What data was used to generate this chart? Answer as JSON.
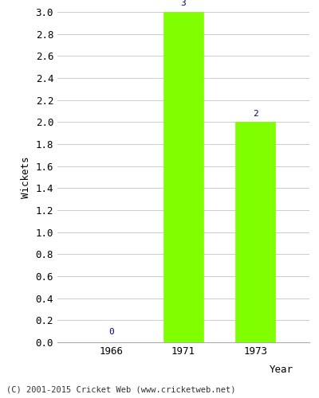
{
  "years": [
    "1966",
    "1971",
    "1973"
  ],
  "values": [
    0,
    3,
    2
  ],
  "bar_color": "#7fff00",
  "bar_edge_color": "#7fff00",
  "label_color": "#000080",
  "xlabel": "Year",
  "ylabel": "Wickets",
  "ylim": [
    0.0,
    3.0
  ],
  "yticks": [
    0.0,
    0.2,
    0.4,
    0.6,
    0.8,
    1.0,
    1.2,
    1.4,
    1.6,
    1.8,
    2.0,
    2.2,
    2.4,
    2.6,
    2.8,
    3.0
  ],
  "footer": "(C) 2001-2015 Cricket Web (www.cricketweb.net)",
  "background_color": "#ffffff",
  "grid_color": "#cccccc",
  "bar_width": 0.55
}
